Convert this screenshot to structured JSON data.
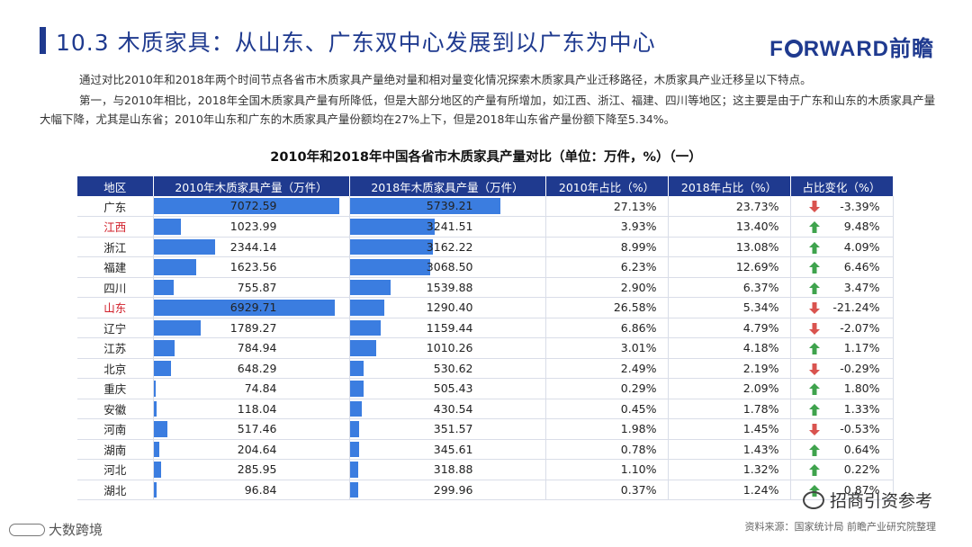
{
  "header": {
    "title": "10.3 木质家具：从山东、广东双中心发展到以广东为中心",
    "logo_prefix": "F",
    "logo_suffix": "RWARD前瞻"
  },
  "intro": {
    "paragraph1": "通过对比2010年和2018年两个时间节点各省市木质家具产量绝对量和相对量变化情况探索木质家具产业迁移路径，木质家具产业迁移呈以下特点。",
    "paragraph2": "第一，与2010年相比，2018年全国木质家具产量有所降低，但是大部分地区的产量有所增加，如江西、浙江、福建、四川等地区；这主要是由于广东和山东的木质家具产量大幅下降，尤其是山东省；2010年山东和广东的木质家具产量份额均在27%上下，但是2018年山东省产量份额下降至5.34%。"
  },
  "chart_data": {
    "type": "table",
    "title": "2010年和2018年中国各省市木质家具产量对比（单位：万件，%）（一）",
    "columns": [
      "地区",
      "2010年木质家具产量（万件）",
      "2018年木质家具产量（万件）",
      "2010年占比（%）",
      "2018年占比（%）",
      "占比变化（%）"
    ],
    "bar_max": 7500,
    "colors": {
      "bar": "#3b7de0",
      "header": "#1f3a8f",
      "up": "#3fa34d",
      "down": "#d9534f",
      "highlight_text": "#d1202b"
    },
    "rows": [
      {
        "region": "广东",
        "highlight": false,
        "v2010": 7072.59,
        "v2010_text": "7072.59",
        "v2018": 5739.21,
        "v2018_text": "5739.21",
        "p2010": "27.13%",
        "p2018": "23.73%",
        "change": "-3.39%",
        "dir": "down"
      },
      {
        "region": "江西",
        "highlight": true,
        "v2010": 1023.99,
        "v2010_text": "1023.99",
        "v2018": 3241.51,
        "v2018_text": "3241.51",
        "p2010": "3.93%",
        "p2018": "13.40%",
        "change": "9.48%",
        "dir": "up"
      },
      {
        "region": "浙江",
        "highlight": false,
        "v2010": 2344.14,
        "v2010_text": "2344.14",
        "v2018": 3162.22,
        "v2018_text": "3162.22",
        "p2010": "8.99%",
        "p2018": "13.08%",
        "change": "4.09%",
        "dir": "up"
      },
      {
        "region": "福建",
        "highlight": false,
        "v2010": 1623.56,
        "v2010_text": "1623.56",
        "v2018": 3068.5,
        "v2018_text": "3068.50",
        "p2010": "6.23%",
        "p2018": "12.69%",
        "change": "6.46%",
        "dir": "up"
      },
      {
        "region": "四川",
        "highlight": false,
        "v2010": 755.87,
        "v2010_text": "755.87",
        "v2018": 1539.88,
        "v2018_text": "1539.88",
        "p2010": "2.90%",
        "p2018": "6.37%",
        "change": "3.47%",
        "dir": "up"
      },
      {
        "region": "山东",
        "highlight": true,
        "v2010": 6929.71,
        "v2010_text": "6929.71",
        "v2018": 1290.4,
        "v2018_text": "1290.40",
        "p2010": "26.58%",
        "p2018": "5.34%",
        "change": "-21.24%",
        "dir": "down"
      },
      {
        "region": "辽宁",
        "highlight": false,
        "v2010": 1789.27,
        "v2010_text": "1789.27",
        "v2018": 1159.44,
        "v2018_text": "1159.44",
        "p2010": "6.86%",
        "p2018": "4.79%",
        "change": "-2.07%",
        "dir": "down"
      },
      {
        "region": "江苏",
        "highlight": false,
        "v2010": 784.94,
        "v2010_text": "784.94",
        "v2018": 1010.26,
        "v2018_text": "1010.26",
        "p2010": "3.01%",
        "p2018": "4.18%",
        "change": "1.17%",
        "dir": "up"
      },
      {
        "region": "北京",
        "highlight": false,
        "v2010": 648.29,
        "v2010_text": "648.29",
        "v2018": 530.62,
        "v2018_text": "530.62",
        "p2010": "2.49%",
        "p2018": "2.19%",
        "change": "-0.29%",
        "dir": "down"
      },
      {
        "region": "重庆",
        "highlight": false,
        "v2010": 74.84,
        "v2010_text": "74.84",
        "v2018": 505.43,
        "v2018_text": "505.43",
        "p2010": "0.29%",
        "p2018": "2.09%",
        "change": "1.80%",
        "dir": "up"
      },
      {
        "region": "安徽",
        "highlight": false,
        "v2010": 118.04,
        "v2010_text": "118.04",
        "v2018": 430.54,
        "v2018_text": "430.54",
        "p2010": "0.45%",
        "p2018": "1.78%",
        "change": "1.33%",
        "dir": "up"
      },
      {
        "region": "河南",
        "highlight": false,
        "v2010": 517.46,
        "v2010_text": "517.46",
        "v2018": 351.57,
        "v2018_text": "351.57",
        "p2010": "1.98%",
        "p2018": "1.45%",
        "change": "-0.53%",
        "dir": "down"
      },
      {
        "region": "湖南",
        "highlight": false,
        "v2010": 204.64,
        "v2010_text": "204.64",
        "v2018": 345.61,
        "v2018_text": "345.61",
        "p2010": "0.78%",
        "p2018": "1.43%",
        "change": "0.64%",
        "dir": "up"
      },
      {
        "region": "河北",
        "highlight": false,
        "v2010": 285.95,
        "v2010_text": "285.95",
        "v2018": 318.88,
        "v2018_text": "318.88",
        "p2010": "1.10%",
        "p2018": "1.32%",
        "change": "0.22%",
        "dir": "up"
      },
      {
        "region": "湖北",
        "highlight": false,
        "v2010": 96.84,
        "v2010_text": "96.84",
        "v2018": 299.96,
        "v2018_text": "299.96",
        "p2010": "0.37%",
        "p2018": "1.24%",
        "change": "0.87%",
        "dir": "up"
      }
    ]
  },
  "footer": {
    "source": "资料来源：国家统计局 前瞻产业研究院整理",
    "watermark_left": "大数跨境",
    "watermark_right": "招商引资参考"
  }
}
